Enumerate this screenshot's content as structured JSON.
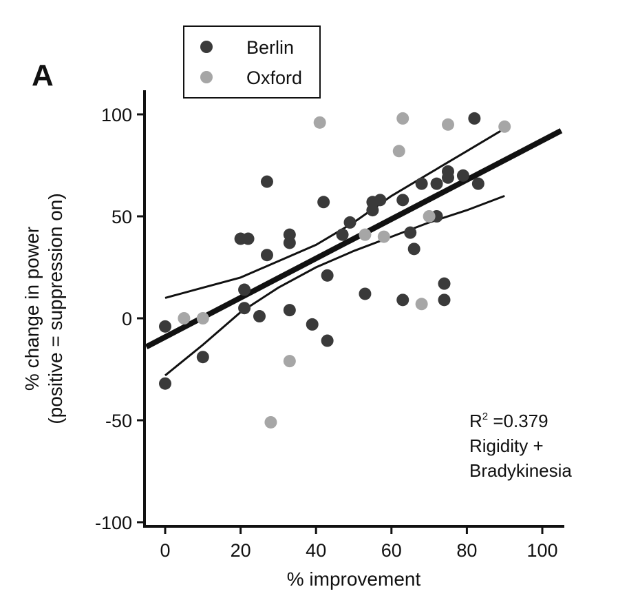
{
  "chart_data": {
    "type": "scatter",
    "panel_label": "A",
    "xlabel": "% improvement",
    "ylabel_line1": "% change in power",
    "ylabel_line2": "(positive = suppression on)",
    "xlim": [
      -5,
      105
    ],
    "ylim": [
      -100,
      110
    ],
    "xticks": [
      0,
      20,
      40,
      60,
      80,
      100
    ],
    "yticks": [
      -100,
      -50,
      0,
      50,
      100
    ],
    "legend": {
      "placement": "top-left"
    },
    "annotation": {
      "r2_prefix": "R",
      "r2_sup": "2",
      "r2_value": " =0.379",
      "line2": "Rigidity +",
      "line3": "Bradykinesia"
    },
    "series": [
      {
        "name": "Berlin",
        "color": "#3a3a3a",
        "points": [
          [
            0,
            -4
          ],
          [
            0,
            -32
          ],
          [
            10,
            -19
          ],
          [
            20,
            39
          ],
          [
            22,
            39
          ],
          [
            21,
            14
          ],
          [
            21,
            5
          ],
          [
            25,
            1
          ],
          [
            27,
            31
          ],
          [
            27,
            67
          ],
          [
            33,
            37
          ],
          [
            33,
            41
          ],
          [
            33,
            4
          ],
          [
            39,
            -3
          ],
          [
            42,
            57
          ],
          [
            43,
            21
          ],
          [
            43,
            -11
          ],
          [
            47,
            41
          ],
          [
            49,
            47
          ],
          [
            53,
            12
          ],
          [
            55,
            57
          ],
          [
            55,
            53
          ],
          [
            57,
            58
          ],
          [
            63,
            9
          ],
          [
            63,
            58
          ],
          [
            65,
            42
          ],
          [
            66,
            34
          ],
          [
            68,
            66
          ],
          [
            72,
            66
          ],
          [
            72,
            50
          ],
          [
            74,
            17
          ],
          [
            74,
            9
          ],
          [
            75,
            72
          ],
          [
            75,
            69
          ],
          [
            79,
            70
          ],
          [
            82,
            98
          ],
          [
            83,
            66
          ]
        ]
      },
      {
        "name": "Oxford",
        "color": "#a6a6a6",
        "points": [
          [
            5,
            0
          ],
          [
            10,
            0
          ],
          [
            28,
            -51
          ],
          [
            33,
            -21
          ],
          [
            41,
            96
          ],
          [
            53,
            41
          ],
          [
            58,
            40
          ],
          [
            62,
            82
          ],
          [
            63,
            98
          ],
          [
            68,
            7
          ],
          [
            70,
            50
          ],
          [
            75,
            95
          ],
          [
            90,
            94
          ]
        ]
      }
    ],
    "regression": {
      "x": [
        -5,
        105
      ],
      "y": [
        -14,
        92
      ]
    },
    "confidence_upper": {
      "x": [
        0,
        10,
        20,
        30,
        40,
        50,
        60,
        70,
        80,
        90
      ],
      "y": [
        10,
        15,
        20,
        28,
        36,
        47,
        60,
        71,
        82,
        93
      ]
    },
    "confidence_lower": {
      "x": [
        0,
        10,
        20,
        30,
        40,
        50,
        60,
        70,
        80,
        90
      ],
      "y": [
        -28,
        -13,
        3,
        15,
        25,
        33,
        40,
        47,
        53,
        60
      ]
    }
  }
}
